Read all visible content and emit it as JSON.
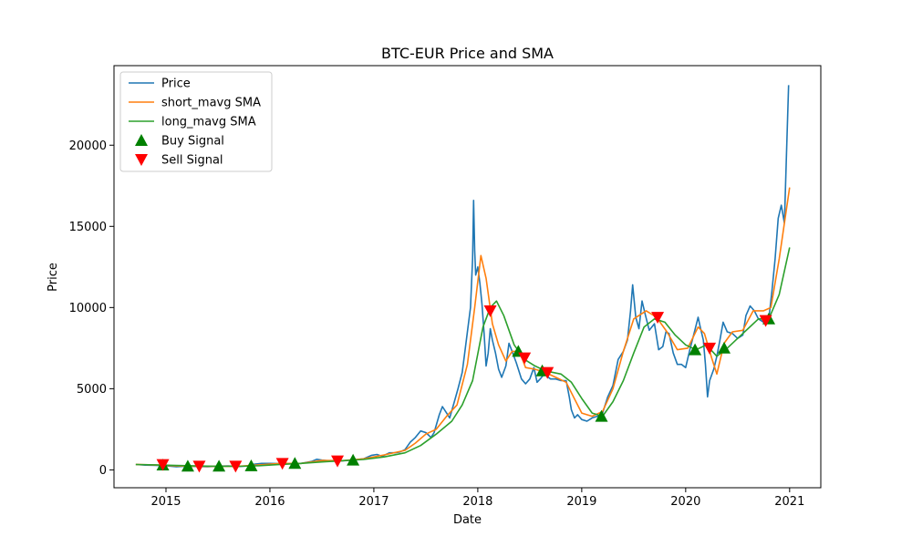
{
  "chart_data": {
    "type": "line",
    "title": "BTC-EUR Price and SMA",
    "xlabel": "Date",
    "ylabel": "Price",
    "xlim": [
      2014.5,
      2021.3
    ],
    "ylim": [
      -1100,
      24900
    ],
    "x_ticks": [
      2015,
      2016,
      2017,
      2018,
      2019,
      2020,
      2021
    ],
    "x_tick_labels": [
      "2015",
      "2016",
      "2017",
      "2018",
      "2019",
      "2020",
      "2021"
    ],
    "y_ticks": [
      0,
      5000,
      10000,
      15000,
      20000
    ],
    "y_tick_labels": [
      "0",
      "5000",
      "10000",
      "15000",
      "20000"
    ],
    "grid": false,
    "legend_position": "top-left",
    "series": [
      {
        "name": "Price",
        "color": "#1f77b4",
        "points": [
          [
            2014.71,
            330
          ],
          [
            2014.8,
            290
          ],
          [
            2014.9,
            280
          ],
          [
            2015.0,
            250
          ],
          [
            2015.1,
            200
          ],
          [
            2015.2,
            230
          ],
          [
            2015.3,
            210
          ],
          [
            2015.4,
            200
          ],
          [
            2015.5,
            230
          ],
          [
            2015.6,
            240
          ],
          [
            2015.7,
            210
          ],
          [
            2015.8,
            250
          ],
          [
            2015.85,
            350
          ],
          [
            2015.92,
            400
          ],
          [
            2016.0,
            400
          ],
          [
            2016.1,
            380
          ],
          [
            2016.2,
            380
          ],
          [
            2016.3,
            400
          ],
          [
            2016.4,
            520
          ],
          [
            2016.45,
            650
          ],
          [
            2016.5,
            600
          ],
          [
            2016.6,
            540
          ],
          [
            2016.7,
            560
          ],
          [
            2016.8,
            600
          ],
          [
            2016.9,
            680
          ],
          [
            2016.98,
            900
          ],
          [
            2017.03,
            950
          ],
          [
            2017.08,
            840
          ],
          [
            2017.15,
            1050
          ],
          [
            2017.2,
            1050
          ],
          [
            2017.25,
            1100
          ],
          [
            2017.3,
            1250
          ],
          [
            2017.35,
            1700
          ],
          [
            2017.4,
            2000
          ],
          [
            2017.45,
            2400
          ],
          [
            2017.5,
            2300
          ],
          [
            2017.55,
            2000
          ],
          [
            2017.58,
            2300
          ],
          [
            2017.63,
            3400
          ],
          [
            2017.66,
            3900
          ],
          [
            2017.7,
            3500
          ],
          [
            2017.73,
            3200
          ],
          [
            2017.77,
            4100
          ],
          [
            2017.81,
            5000
          ],
          [
            2017.85,
            6000
          ],
          [
            2017.87,
            7000
          ],
          [
            2017.9,
            8500
          ],
          [
            2017.93,
            10000
          ],
          [
            2017.95,
            13000
          ],
          [
            2017.96,
            16600
          ],
          [
            2017.97,
            13500
          ],
          [
            2017.98,
            12000
          ],
          [
            2018.0,
            12500
          ],
          [
            2018.02,
            11500
          ],
          [
            2018.04,
            10200
          ],
          [
            2018.06,
            8500
          ],
          [
            2018.08,
            6400
          ],
          [
            2018.1,
            7200
          ],
          [
            2018.12,
            8700
          ],
          [
            2018.14,
            8000
          ],
          [
            2018.17,
            7200
          ],
          [
            2018.2,
            6200
          ],
          [
            2018.23,
            5700
          ],
          [
            2018.27,
            6400
          ],
          [
            2018.3,
            7800
          ],
          [
            2018.33,
            7300
          ],
          [
            2018.37,
            6600
          ],
          [
            2018.42,
            5600
          ],
          [
            2018.46,
            5300
          ],
          [
            2018.5,
            5600
          ],
          [
            2018.54,
            6300
          ],
          [
            2018.57,
            5400
          ],
          [
            2018.6,
            5600
          ],
          [
            2018.64,
            5900
          ],
          [
            2018.7,
            5600
          ],
          [
            2018.75,
            5600
          ],
          [
            2018.8,
            5500
          ],
          [
            2018.85,
            5500
          ],
          [
            2018.88,
            4500
          ],
          [
            2018.9,
            3700
          ],
          [
            2018.93,
            3200
          ],
          [
            2018.96,
            3400
          ],
          [
            2019.0,
            3100
          ],
          [
            2019.05,
            3000
          ],
          [
            2019.1,
            3200
          ],
          [
            2019.15,
            3300
          ],
          [
            2019.2,
            3500
          ],
          [
            2019.25,
            4500
          ],
          [
            2019.3,
            5200
          ],
          [
            2019.35,
            6800
          ],
          [
            2019.4,
            7300
          ],
          [
            2019.44,
            8000
          ],
          [
            2019.47,
            9800
          ],
          [
            2019.49,
            11400
          ],
          [
            2019.52,
            9400
          ],
          [
            2019.55,
            8700
          ],
          [
            2019.58,
            10400
          ],
          [
            2019.61,
            9600
          ],
          [
            2019.65,
            8600
          ],
          [
            2019.7,
            9000
          ],
          [
            2019.74,
            7400
          ],
          [
            2019.78,
            7600
          ],
          [
            2019.81,
            8500
          ],
          [
            2019.84,
            8400
          ],
          [
            2019.88,
            7200
          ],
          [
            2019.92,
            6500
          ],
          [
            2019.96,
            6500
          ],
          [
            2020.0,
            6300
          ],
          [
            2020.04,
            7400
          ],
          [
            2020.08,
            8400
          ],
          [
            2020.12,
            9400
          ],
          [
            2020.14,
            8800
          ],
          [
            2020.17,
            8000
          ],
          [
            2020.19,
            6500
          ],
          [
            2020.21,
            4500
          ],
          [
            2020.23,
            5500
          ],
          [
            2020.27,
            6200
          ],
          [
            2020.3,
            7000
          ],
          [
            2020.33,
            8000
          ],
          [
            2020.36,
            9100
          ],
          [
            2020.4,
            8500
          ],
          [
            2020.45,
            8400
          ],
          [
            2020.5,
            8100
          ],
          [
            2020.55,
            8300
          ],
          [
            2020.58,
            9500
          ],
          [
            2020.62,
            10100
          ],
          [
            2020.66,
            9800
          ],
          [
            2020.7,
            9300
          ],
          [
            2020.75,
            9100
          ],
          [
            2020.8,
            9300
          ],
          [
            2020.83,
            11000
          ],
          [
            2020.86,
            13000
          ],
          [
            2020.89,
            15500
          ],
          [
            2020.92,
            16300
          ],
          [
            2020.95,
            15200
          ],
          [
            2020.97,
            19500
          ],
          [
            2020.99,
            23700
          ]
        ]
      },
      {
        "name": "short_mavg SMA",
        "color": "#ff7f0e",
        "points": [
          [
            2014.71,
            340
          ],
          [
            2014.9,
            300
          ],
          [
            2015.1,
            240
          ],
          [
            2015.3,
            225
          ],
          [
            2015.5,
            215
          ],
          [
            2015.7,
            225
          ],
          [
            2015.9,
            310
          ],
          [
            2016.1,
            400
          ],
          [
            2016.3,
            400
          ],
          [
            2016.5,
            580
          ],
          [
            2016.7,
            570
          ],
          [
            2016.9,
            680
          ],
          [
            2017.1,
            920
          ],
          [
            2017.3,
            1200
          ],
          [
            2017.4,
            1650
          ],
          [
            2017.5,
            2200
          ],
          [
            2017.6,
            2500
          ],
          [
            2017.7,
            3300
          ],
          [
            2017.8,
            4000
          ],
          [
            2017.9,
            6500
          ],
          [
            2017.97,
            10000
          ],
          [
            2018.03,
            13200
          ],
          [
            2018.08,
            11800
          ],
          [
            2018.14,
            9000
          ],
          [
            2018.2,
            7700
          ],
          [
            2018.27,
            6700
          ],
          [
            2018.33,
            7300
          ],
          [
            2018.4,
            7300
          ],
          [
            2018.46,
            6300
          ],
          [
            2018.55,
            6200
          ],
          [
            2018.65,
            6000
          ],
          [
            2018.75,
            5700
          ],
          [
            2018.85,
            5400
          ],
          [
            2018.92,
            4500
          ],
          [
            2019.0,
            3500
          ],
          [
            2019.1,
            3300
          ],
          [
            2019.2,
            3600
          ],
          [
            2019.3,
            5000
          ],
          [
            2019.4,
            7300
          ],
          [
            2019.5,
            9300
          ],
          [
            2019.62,
            9800
          ],
          [
            2019.72,
            9400
          ],
          [
            2019.82,
            8500
          ],
          [
            2019.92,
            7400
          ],
          [
            2020.02,
            7500
          ],
          [
            2020.12,
            8800
          ],
          [
            2020.18,
            8400
          ],
          [
            2020.25,
            6900
          ],
          [
            2020.3,
            5900
          ],
          [
            2020.37,
            7800
          ],
          [
            2020.45,
            8500
          ],
          [
            2020.55,
            8600
          ],
          [
            2020.65,
            9800
          ],
          [
            2020.75,
            9800
          ],
          [
            2020.82,
            10000
          ],
          [
            2020.9,
            13000
          ],
          [
            2021.0,
            17400
          ]
        ]
      },
      {
        "name": "long_mavg SMA",
        "color": "#2ca02c",
        "points": [
          [
            2014.71,
            330
          ],
          [
            2014.9,
            310
          ],
          [
            2015.1,
            270
          ],
          [
            2015.3,
            240
          ],
          [
            2015.5,
            220
          ],
          [
            2015.7,
            220
          ],
          [
            2015.9,
            260
          ],
          [
            2016.1,
            340
          ],
          [
            2016.3,
            400
          ],
          [
            2016.5,
            490
          ],
          [
            2016.7,
            570
          ],
          [
            2016.9,
            640
          ],
          [
            2017.1,
            800
          ],
          [
            2017.3,
            1050
          ],
          [
            2017.45,
            1500
          ],
          [
            2017.6,
            2200
          ],
          [
            2017.75,
            3000
          ],
          [
            2017.85,
            4000
          ],
          [
            2017.95,
            5500
          ],
          [
            2018.05,
            8800
          ],
          [
            2018.12,
            10000
          ],
          [
            2018.18,
            10400
          ],
          [
            2018.25,
            9500
          ],
          [
            2018.35,
            7700
          ],
          [
            2018.45,
            6800
          ],
          [
            2018.55,
            6400
          ],
          [
            2018.65,
            6100
          ],
          [
            2018.8,
            5900
          ],
          [
            2018.9,
            5400
          ],
          [
            2019.0,
            4400
          ],
          [
            2019.1,
            3500
          ],
          [
            2019.2,
            3300
          ],
          [
            2019.3,
            4200
          ],
          [
            2019.4,
            5500
          ],
          [
            2019.5,
            7200
          ],
          [
            2019.6,
            8800
          ],
          [
            2019.7,
            9300
          ],
          [
            2019.8,
            9100
          ],
          [
            2019.9,
            8300
          ],
          [
            2020.0,
            7700
          ],
          [
            2020.1,
            7400
          ],
          [
            2020.2,
            7700
          ],
          [
            2020.3,
            7000
          ],
          [
            2020.4,
            7500
          ],
          [
            2020.5,
            8100
          ],
          [
            2020.6,
            8700
          ],
          [
            2020.7,
            9300
          ],
          [
            2020.8,
            9300
          ],
          [
            2020.9,
            10800
          ],
          [
            2021.0,
            13700
          ]
        ]
      }
    ],
    "signals": [
      {
        "name": "Buy Signal",
        "color": "#008000",
        "marker": "triangle-up",
        "points": [
          [
            2014.97,
            300
          ],
          [
            2015.21,
            230
          ],
          [
            2015.51,
            230
          ],
          [
            2015.82,
            250
          ],
          [
            2016.24,
            400
          ],
          [
            2016.8,
            600
          ],
          [
            2018.39,
            7300
          ],
          [
            2018.62,
            6100
          ],
          [
            2019.19,
            3300
          ],
          [
            2020.09,
            7400
          ],
          [
            2020.37,
            7500
          ],
          [
            2020.8,
            9300
          ]
        ]
      },
      {
        "name": "Sell Signal",
        "color": "#ff0000",
        "marker": "triangle-down",
        "points": [
          [
            2014.97,
            330
          ],
          [
            2015.32,
            230
          ],
          [
            2015.67,
            230
          ],
          [
            2016.12,
            400
          ],
          [
            2016.65,
            550
          ],
          [
            2018.12,
            9800
          ],
          [
            2018.45,
            6900
          ],
          [
            2018.67,
            6000
          ],
          [
            2019.73,
            9400
          ],
          [
            2020.23,
            7500
          ],
          [
            2020.77,
            9200
          ]
        ]
      }
    ]
  }
}
